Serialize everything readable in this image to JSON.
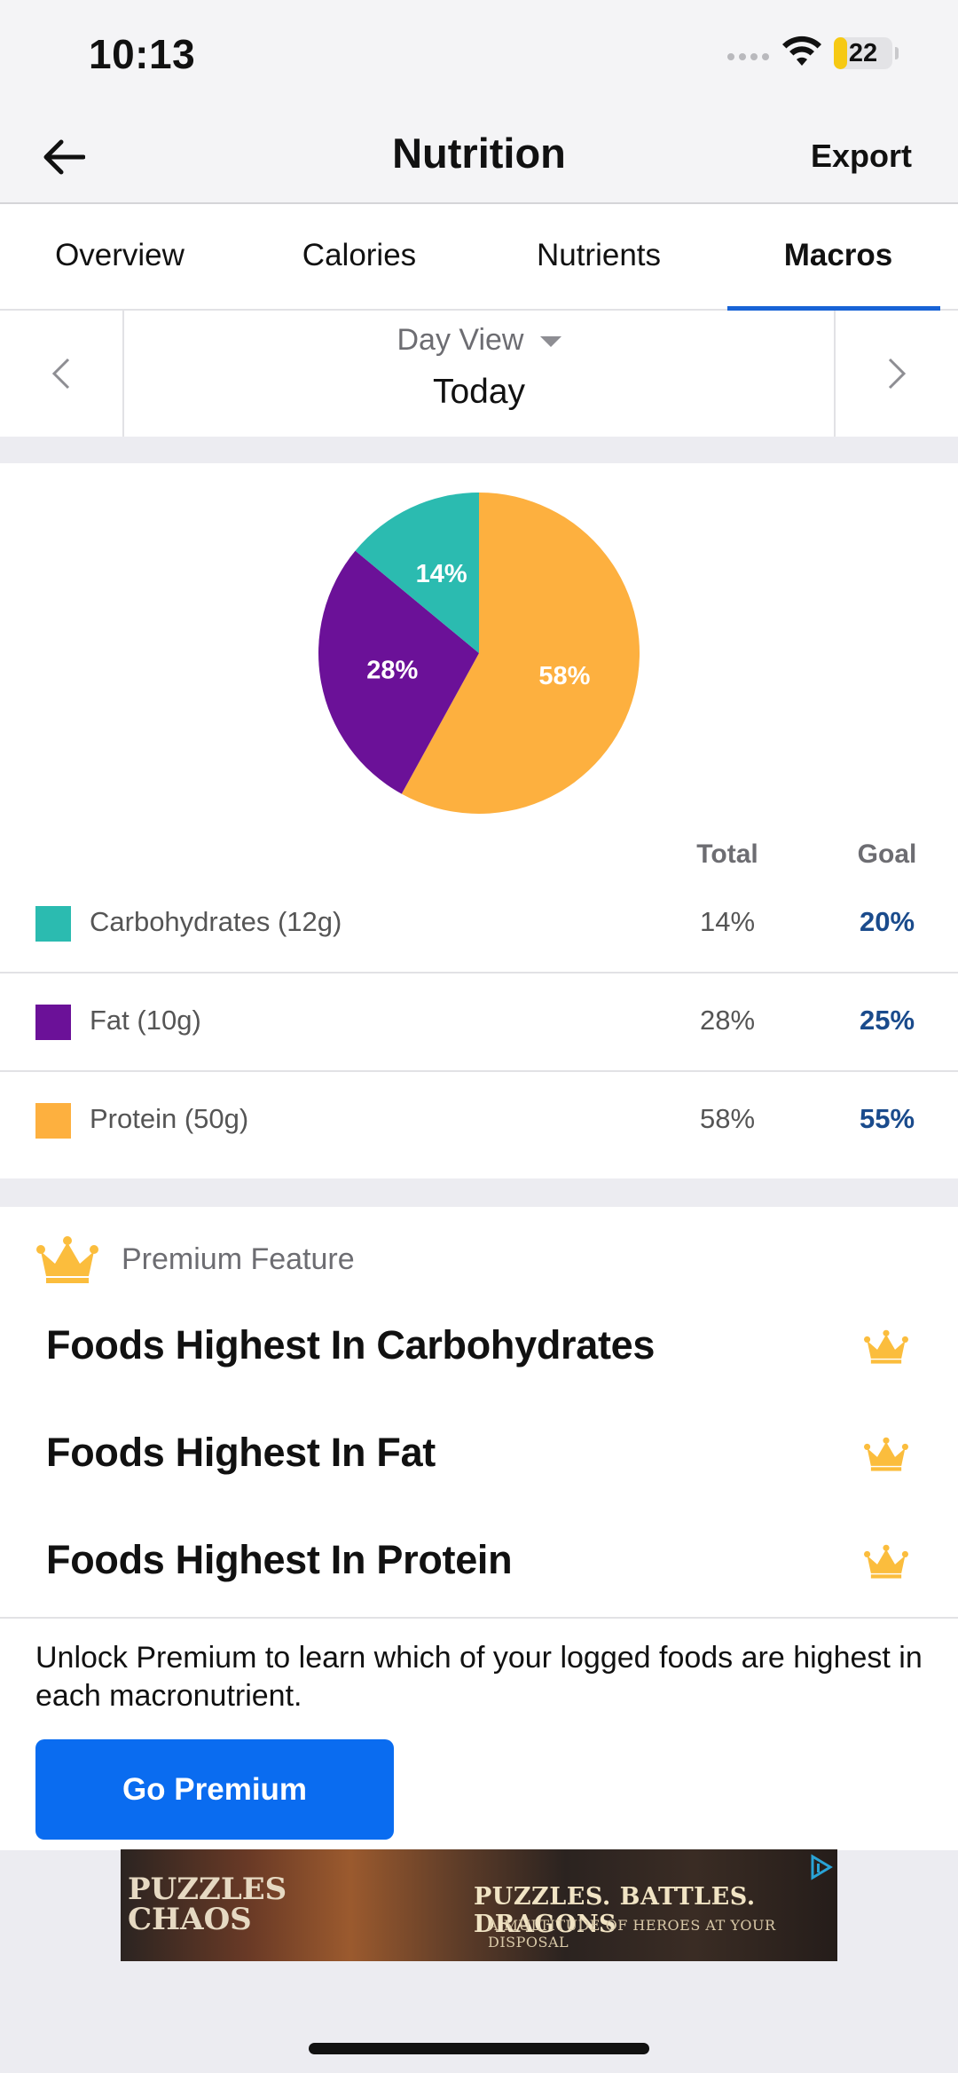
{
  "status_bar": {
    "time": "10:13",
    "battery": "22",
    "battery_level": 0.22
  },
  "nav": {
    "title": "Nutrition",
    "export_label": "Export"
  },
  "tabs": [
    {
      "label": "Overview",
      "active": false
    },
    {
      "label": "Calories",
      "active": false
    },
    {
      "label": "Nutrients",
      "active": false
    },
    {
      "label": "Macros",
      "active": true
    }
  ],
  "date": {
    "view_label": "Day View",
    "current": "Today"
  },
  "chart_data": {
    "type": "pie",
    "slices": [
      {
        "label": "Protein",
        "value": 58,
        "display": "58%",
        "color": "#fdb03f"
      },
      {
        "label": "Fat",
        "value": 28,
        "display": "28%",
        "color": "#6b1198"
      },
      {
        "label": "Carbohydrates",
        "value": 14,
        "display": "14%",
        "color": "#2bbbb0"
      }
    ]
  },
  "table": {
    "total_header": "Total",
    "goal_header": "Goal",
    "rows": [
      {
        "label": "Carbohydrates (12g)",
        "total": "14%",
        "goal": "20%",
        "color": "#2bbbb0"
      },
      {
        "label": "Fat (10g)",
        "total": "28%",
        "goal": "25%",
        "color": "#6b1198"
      },
      {
        "label": "Protein (50g)",
        "total": "58%",
        "goal": "55%",
        "color": "#fdb03f"
      }
    ]
  },
  "premium": {
    "feature_label": "Premium Feature",
    "items": [
      {
        "label": "Foods Highest In Carbohydrates"
      },
      {
        "label": "Foods Highest In Fat"
      },
      {
        "label": "Foods Highest In Protein"
      }
    ],
    "unlock_text": "Unlock Premium to learn which of your logged foods are highest in each macronutrient.",
    "button_label": "Go Premium",
    "crown_color": "#fbbd3d"
  },
  "ad": {
    "logo_line1": "PUZZLES",
    "logo_line2": "CHAOS",
    "headline": "PUZZLES. BATTLES. DRAGONS",
    "subline": "A MULTITUDE OF HEROES AT YOUR DISPOSAL"
  },
  "colors": {
    "accent": "#1863d6",
    "button": "#0a6cf0",
    "goal_text": "#1a4b8c"
  },
  "icons": [
    "back-arrow-icon",
    "chevron-left-icon",
    "chevron-right-icon",
    "caret-down-icon",
    "crown-icon",
    "wifi-icon",
    "ad-choices-icon"
  ]
}
